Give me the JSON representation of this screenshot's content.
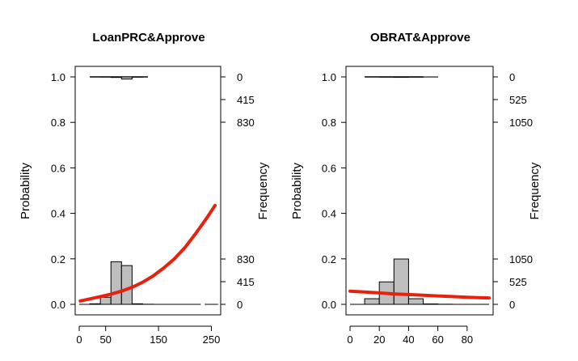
{
  "chart_data": [
    {
      "type": "bar",
      "title": "LoanPRC&Approve",
      "ylabel": "Probability",
      "ylabel_right": "Frequency",
      "xlim": [
        0,
        260
      ],
      "ylim": [
        0,
        1
      ],
      "xticks": [
        0,
        50,
        150,
        250
      ],
      "yticks": [
        "0.0",
        "0.2",
        "0.4",
        "0.6",
        "0.8",
        "1.0"
      ],
      "freq_ticks_bottom": [
        "0",
        "415",
        "830"
      ],
      "freq_ticks_top": [
        "0",
        "415",
        "830"
      ],
      "bin_width": 20,
      "hist_approve0": {
        "bins": [
          20,
          40,
          60,
          80,
          100,
          120
        ],
        "values": [
          10,
          130,
          780,
          710,
          10,
          2
        ]
      },
      "hist_approve1": {
        "bins": [
          20,
          40,
          60,
          80,
          100,
          120
        ],
        "values": [
          0,
          2,
          10,
          40,
          4,
          0
        ]
      },
      "hist_approve0_baseline_extent": [
        0,
        230
      ],
      "hist_approve1_baseline_extent": [
        20,
        130
      ],
      "rug_approve0": [
        245,
        255
      ],
      "fitted_curve": {
        "color": "#e8210f",
        "x": [
          2,
          20,
          40,
          60,
          80,
          100,
          120,
          140,
          160,
          180,
          200,
          220,
          240,
          257
        ],
        "y": [
          0.015,
          0.024,
          0.034,
          0.045,
          0.058,
          0.075,
          0.097,
          0.125,
          0.16,
          0.2,
          0.25,
          0.31,
          0.375,
          0.435
        ]
      }
    },
    {
      "type": "bar",
      "title": "OBRAT&Approve",
      "ylabel": "Probability",
      "ylabel_right": "Frequency",
      "xlim": [
        0,
        95
      ],
      "ylim": [
        0,
        1
      ],
      "xticks": [
        0,
        20,
        40,
        60,
        80
      ],
      "yticks": [
        "0.0",
        "0.2",
        "0.4",
        "0.6",
        "0.8",
        "1.0"
      ],
      "freq_ticks_bottom": [
        "0",
        "525",
        "1050"
      ],
      "freq_ticks_top": [
        "0",
        "525",
        "1050"
      ],
      "bin_width": 10,
      "hist_approve0": {
        "bins": [
          10,
          20,
          30,
          40,
          50,
          60
        ],
        "values": [
          130,
          520,
          1050,
          130,
          10,
          3
        ]
      },
      "hist_approve1": {
        "bins": [
          10,
          20,
          30,
          40,
          50,
          60
        ],
        "values": [
          0,
          5,
          10,
          5,
          2,
          0
        ]
      },
      "hist_approve0_baseline_extent": [
        0,
        95
      ],
      "hist_approve1_baseline_extent": [
        10,
        50
      ],
      "rug_approve0": [],
      "fitted_curve": {
        "color": "#e8210f",
        "x": [
          0,
          10,
          20,
          30,
          40,
          50,
          60,
          70,
          80,
          90,
          95
        ],
        "y": [
          0.058,
          0.054,
          0.05,
          0.046,
          0.043,
          0.04,
          0.037,
          0.034,
          0.031,
          0.029,
          0.028
        ]
      }
    }
  ]
}
